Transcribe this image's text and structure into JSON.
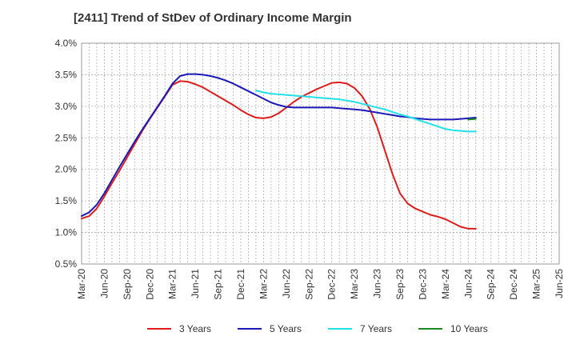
{
  "chart_data": {
    "type": "line",
    "title": "[2411]  Trend of StDev of Ordinary Income Margin",
    "xlabel": "",
    "ylabel": "",
    "ylim": [
      0.5,
      4.0
    ],
    "y_ticks": [
      "0.5%",
      "1.0%",
      "1.5%",
      "2.0%",
      "2.5%",
      "3.0%",
      "3.5%",
      "4.0%"
    ],
    "y_tick_values": [
      0.5,
      1.0,
      1.5,
      2.0,
      2.5,
      3.0,
      3.5,
      4.0
    ],
    "x_ticks": [
      "Mar-20",
      "Jun-20",
      "Sep-20",
      "Dec-20",
      "Mar-21",
      "Jun-21",
      "Sep-21",
      "Dec-21",
      "Mar-22",
      "Jun-22",
      "Sep-22",
      "Dec-22",
      "Mar-23",
      "Jun-23",
      "Sep-23",
      "Dec-23",
      "Mar-24",
      "Jun-24",
      "Sep-24",
      "Dec-24",
      "Mar-25",
      "Jun-25"
    ],
    "grid": true,
    "legend_position": "bottom",
    "series": [
      {
        "name": "3 Years",
        "color": "#dd1c1c",
        "values": [
          1.22,
          1.26,
          1.38,
          1.57,
          1.78,
          1.98,
          2.19,
          2.4,
          2.61,
          2.8,
          2.98,
          3.16,
          3.34,
          3.4,
          3.39,
          3.35,
          3.3,
          3.23,
          3.16,
          3.09,
          3.02,
          2.94,
          2.87,
          2.82,
          2.81,
          2.83,
          2.89,
          2.98,
          3.07,
          3.15,
          3.21,
          3.27,
          3.32,
          3.37,
          3.38,
          3.36,
          3.29,
          3.16,
          2.96,
          2.67,
          2.3,
          1.93,
          1.62,
          1.46,
          1.38,
          1.33,
          1.28,
          1.25,
          1.21,
          1.15,
          1.09,
          1.06,
          1.06
        ]
      },
      {
        "name": "5 Years",
        "color": "#1a1ab8",
        "values": [
          1.26,
          1.32,
          1.44,
          1.62,
          1.83,
          2.04,
          2.24,
          2.44,
          2.63,
          2.81,
          2.99,
          3.17,
          3.36,
          3.48,
          3.51,
          3.51,
          3.5,
          3.48,
          3.45,
          3.41,
          3.36,
          3.3,
          3.24,
          3.18,
          3.12,
          3.06,
          3.02,
          2.99,
          2.98,
          2.98,
          2.98,
          2.98,
          2.98,
          2.98,
          2.97,
          2.96,
          2.95,
          2.94,
          2.92,
          2.9,
          2.88,
          2.86,
          2.84,
          2.83,
          2.81,
          2.8,
          2.79,
          2.79,
          2.79,
          2.79,
          2.8,
          2.81,
          2.82
        ]
      },
      {
        "name": "7 Years",
        "color": "#22e0e8",
        "values": [
          null,
          null,
          null,
          null,
          null,
          null,
          null,
          null,
          null,
          null,
          null,
          null,
          null,
          null,
          null,
          null,
          null,
          null,
          null,
          null,
          null,
          null,
          null,
          3.25,
          3.22,
          3.2,
          3.19,
          3.18,
          3.17,
          3.16,
          3.15,
          3.14,
          3.13,
          3.12,
          3.11,
          3.09,
          3.07,
          3.04,
          3.01,
          2.98,
          2.95,
          2.91,
          2.87,
          2.84,
          2.8,
          2.76,
          2.72,
          2.68,
          2.64,
          2.62,
          2.61,
          2.6,
          2.6
        ]
      },
      {
        "name": "10 Years",
        "color": "#1e8a1e",
        "values": [
          null,
          null,
          null,
          null,
          null,
          null,
          null,
          null,
          null,
          null,
          null,
          null,
          null,
          null,
          null,
          null,
          null,
          null,
          null,
          null,
          null,
          null,
          null,
          null,
          null,
          null,
          null,
          null,
          null,
          null,
          null,
          null,
          null,
          null,
          null,
          null,
          null,
          null,
          null,
          null,
          null,
          null,
          null,
          null,
          null,
          null,
          null,
          null,
          null,
          null,
          null,
          2.79,
          2.8
        ]
      }
    ]
  }
}
